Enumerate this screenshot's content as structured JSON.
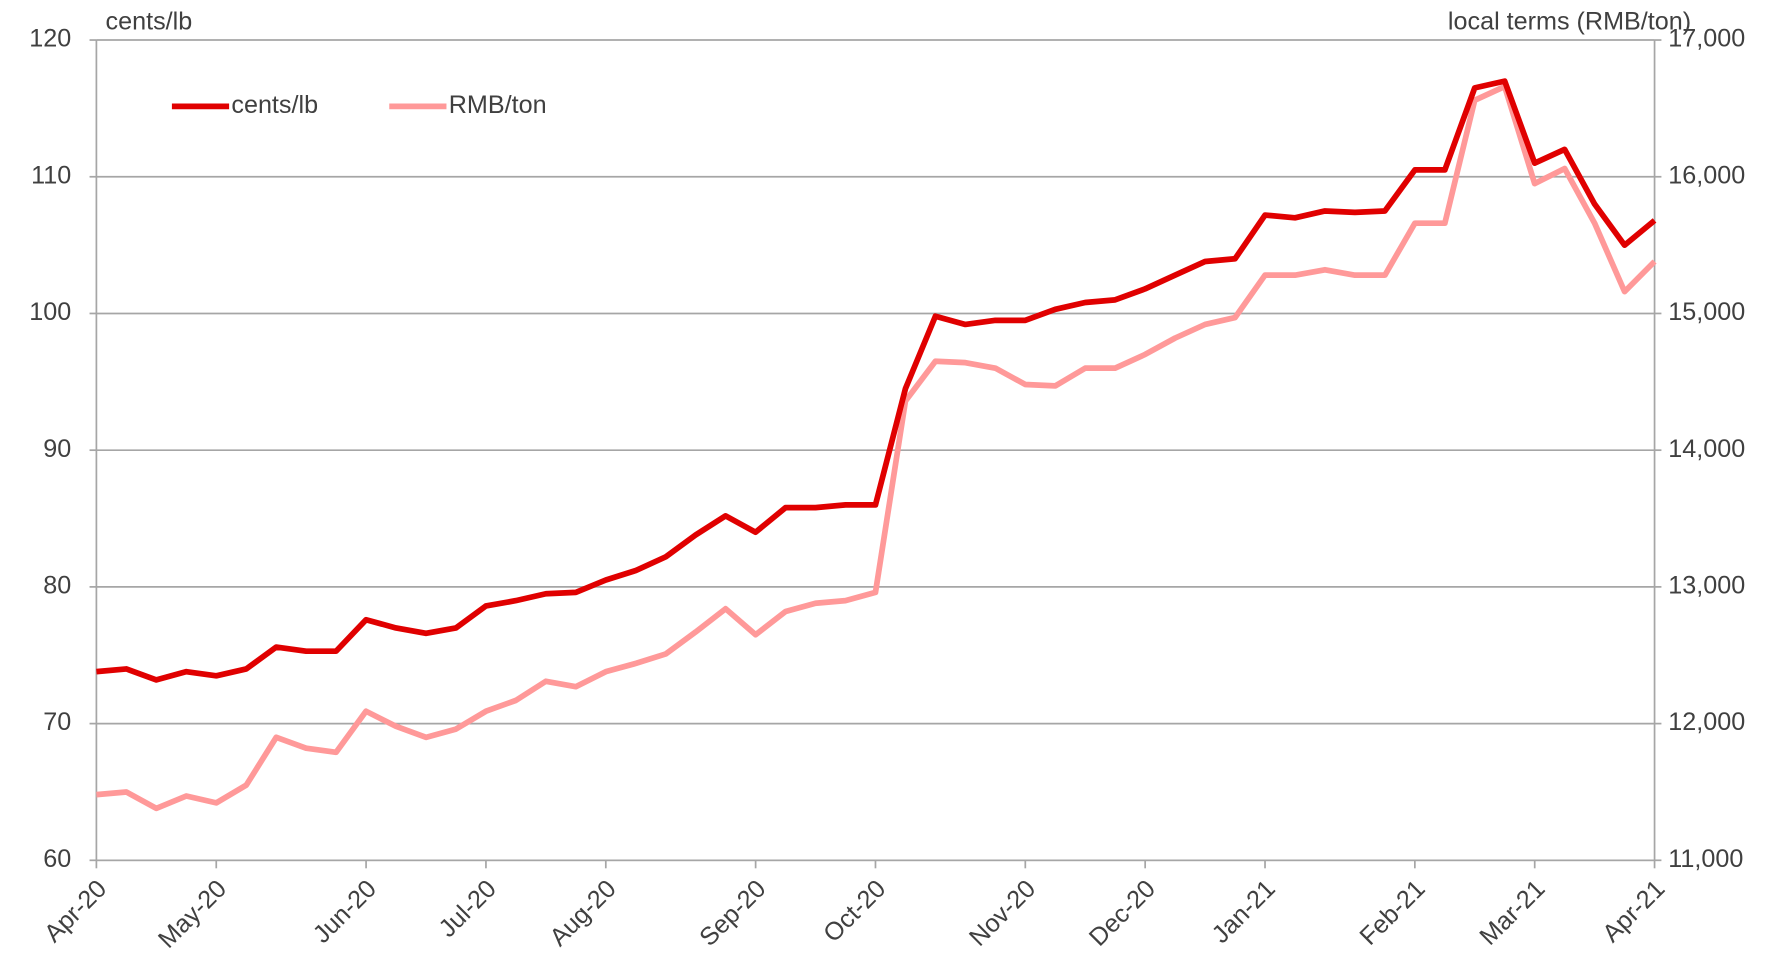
{
  "chart_data": {
    "type": "line",
    "y_label": "cents/lb",
    "y2_label": "local terms (RMB/ton)",
    "categories": [
      "Apr-20",
      null,
      null,
      null,
      "May-20",
      null,
      null,
      null,
      null,
      "Jun-20",
      null,
      null,
      null,
      "Jul-20",
      null,
      null,
      null,
      "Aug-20",
      null,
      null,
      null,
      null,
      "Sep-20",
      null,
      null,
      null,
      "Oct-20",
      null,
      null,
      null,
      null,
      "Nov-20",
      null,
      null,
      null,
      "Dec-20",
      null,
      null,
      null,
      "Jan-21",
      null,
      null,
      null,
      null,
      "Feb-21",
      null,
      null,
      null,
      "Mar-21",
      null,
      null,
      null,
      "Apr-21"
    ],
    "series": [
      {
        "name": "cents/lb",
        "color": "#e00000",
        "axis": "y",
        "values": [
          73.8,
          74.0,
          73.2,
          73.8,
          73.5,
          74.0,
          75.6,
          75.3,
          75.3,
          77.6,
          77.0,
          76.6,
          77.0,
          78.6,
          79.0,
          79.5,
          79.6,
          80.5,
          81.2,
          82.2,
          83.8,
          85.2,
          84.0,
          85.8,
          85.8,
          86.0,
          86.0,
          94.5,
          99.8,
          99.2,
          99.5,
          99.5,
          100.3,
          100.8,
          101.0,
          101.8,
          102.8,
          103.8,
          104.0,
          107.2,
          107.0,
          107.5,
          107.4,
          107.5,
          110.5,
          110.5,
          116.5,
          117.0,
          111.0,
          112.0,
          108.0,
          105.0,
          106.8
        ]
      },
      {
        "name": "RMB/ton",
        "color": "#ff9999",
        "axis": "y2",
        "values": [
          11480,
          11500,
          11380,
          11470,
          11420,
          11550,
          11900,
          11820,
          11790,
          12090,
          11980,
          11900,
          11960,
          12090,
          12170,
          12310,
          12270,
          12380,
          12440,
          12510,
          12670,
          12840,
          12650,
          12820,
          12880,
          12900,
          12960,
          14360,
          14650,
          14640,
          14600,
          14480,
          14470,
          14600,
          14600,
          14700,
          14820,
          14920,
          14970,
          15280,
          15280,
          15320,
          15280,
          15280,
          15660,
          15660,
          16560,
          16660,
          15950,
          16060,
          15660,
          15160,
          15380
        ]
      }
    ],
    "ylim": [
      60,
      120
    ],
    "yticks": [
      60,
      70,
      80,
      90,
      100,
      110,
      120
    ],
    "y2lim": [
      11000,
      17000
    ],
    "y2ticks": [
      {
        "value": 11000,
        "label": "11,000"
      },
      {
        "value": 12000,
        "label": "12,000"
      },
      {
        "value": 13000,
        "label": "13,000"
      },
      {
        "value": 14000,
        "label": "14,000"
      },
      {
        "value": 15000,
        "label": "15,000"
      },
      {
        "value": 16000,
        "label": "16,000"
      },
      {
        "value": 17000,
        "label": "17,000"
      }
    ],
    "grid": true,
    "legend": "upper-left"
  }
}
